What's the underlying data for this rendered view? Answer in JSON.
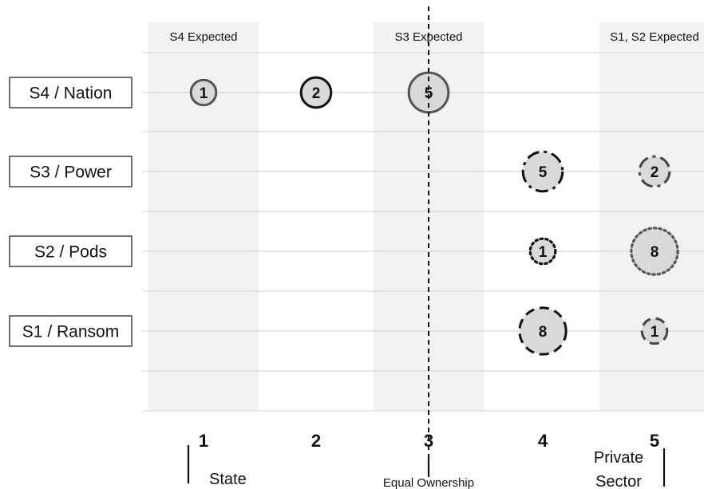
{
  "chart_data": {
    "type": "scatter",
    "subtype": "bubble",
    "x_categories": [
      "1",
      "2",
      "3",
      "4",
      "5"
    ],
    "y_categories": [
      "S1 / Ransom",
      "S2 / Pods",
      "S3 / Power",
      "S4 / Nation"
    ],
    "region_labels": [
      {
        "text": "S4 Expected",
        "x": 1
      },
      {
        "text": "S3 Expected",
        "x": 3
      },
      {
        "text": "S1, S2 Expected",
        "x": 5
      }
    ],
    "shaded_x_bands": [
      1,
      3,
      5
    ],
    "divider_x": 3,
    "bottom_labels": {
      "left": "State",
      "center": "Equal Ownership",
      "right_line1": "Private",
      "right_line2": "Sector"
    },
    "bubbles": [
      {
        "series": "S4 / Nation",
        "x": 1,
        "value": 1,
        "border": "solid",
        "border_color": "#555555"
      },
      {
        "series": "S4 / Nation",
        "x": 2,
        "value": 2,
        "border": "solid",
        "border_color": "#111111"
      },
      {
        "series": "S4 / Nation",
        "x": 3,
        "value": 5,
        "border": "solid",
        "border_color": "#555555"
      },
      {
        "series": "S3 / Power",
        "x": 4,
        "value": 5,
        "border": "dashdot",
        "border_color": "#111111"
      },
      {
        "series": "S3 / Power",
        "x": 5,
        "value": 2,
        "border": "dashdot",
        "border_color": "#444444"
      },
      {
        "series": "S2 / Pods",
        "x": 4,
        "value": 1,
        "border": "dotted",
        "border_color": "#111111"
      },
      {
        "series": "S2 / Pods",
        "x": 5,
        "value": 8,
        "border": "dotted",
        "border_color": "#555555"
      },
      {
        "series": "S1 / Ransom",
        "x": 4,
        "value": 8,
        "border": "dashed",
        "border_color": "#111111"
      },
      {
        "series": "S1 / Ransom",
        "x": 5,
        "value": 1,
        "border": "dashed",
        "border_color": "#444444"
      }
    ],
    "bubble_fill": "#d9d9d9",
    "band_fill": "#f2f2f2",
    "grid": true
  }
}
